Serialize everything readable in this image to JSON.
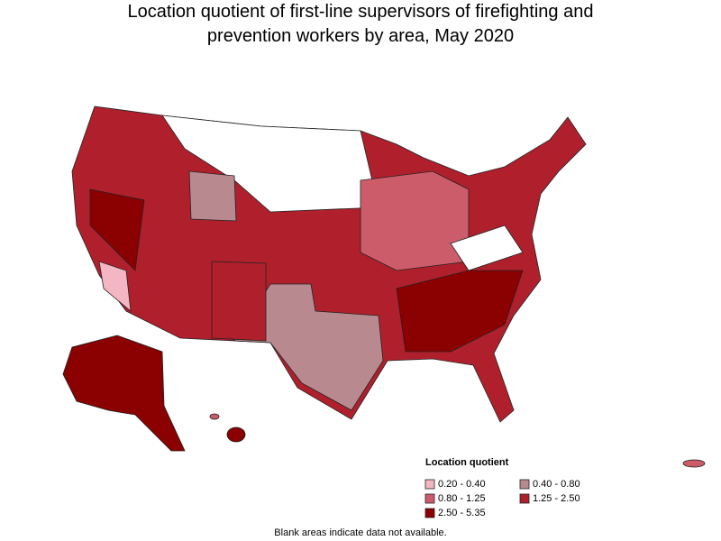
{
  "title": "Location quotient of first-line supervisors of firefighting and prevention workers by area, May 2020",
  "legend": {
    "title": "Location quotient",
    "items": [
      {
        "label": "0.20 - 0.40",
        "color": "#f4b6c2"
      },
      {
        "label": "0.40 - 0.80",
        "color": "#b88a8f"
      },
      {
        "label": "0.80 - 1.25",
        "color": "#cd5c6a"
      },
      {
        "label": "1.25 - 2.50",
        "color": "#b0202c"
      },
      {
        "label": "2.50 - 5.35",
        "color": "#8b0000"
      }
    ]
  },
  "note": "Blank areas indicate data not available."
}
